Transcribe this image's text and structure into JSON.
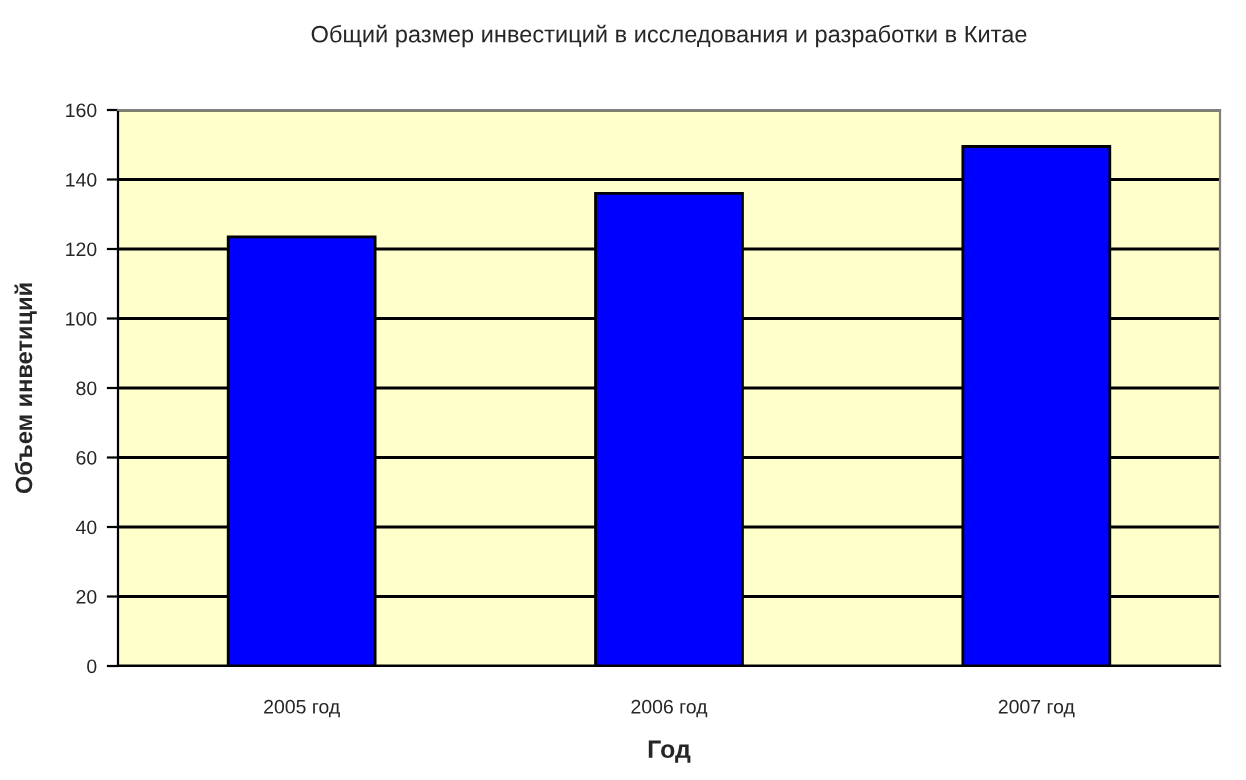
{
  "chart_data": {
    "type": "bar",
    "title": "Общий размер инвестиций в исследования и разработки в Китае",
    "xlabel": "Год",
    "ylabel": "Объем инветиций",
    "categories": [
      "2005 год",
      "2006 год",
      "2007 год"
    ],
    "values": [
      123.5,
      136,
      149.5
    ],
    "color": "#0000ff",
    "ylim": [
      0,
      160
    ],
    "yticks": [
      0,
      20,
      40,
      60,
      80,
      100,
      120,
      140,
      160
    ],
    "grid": "y",
    "legend": false
  }
}
